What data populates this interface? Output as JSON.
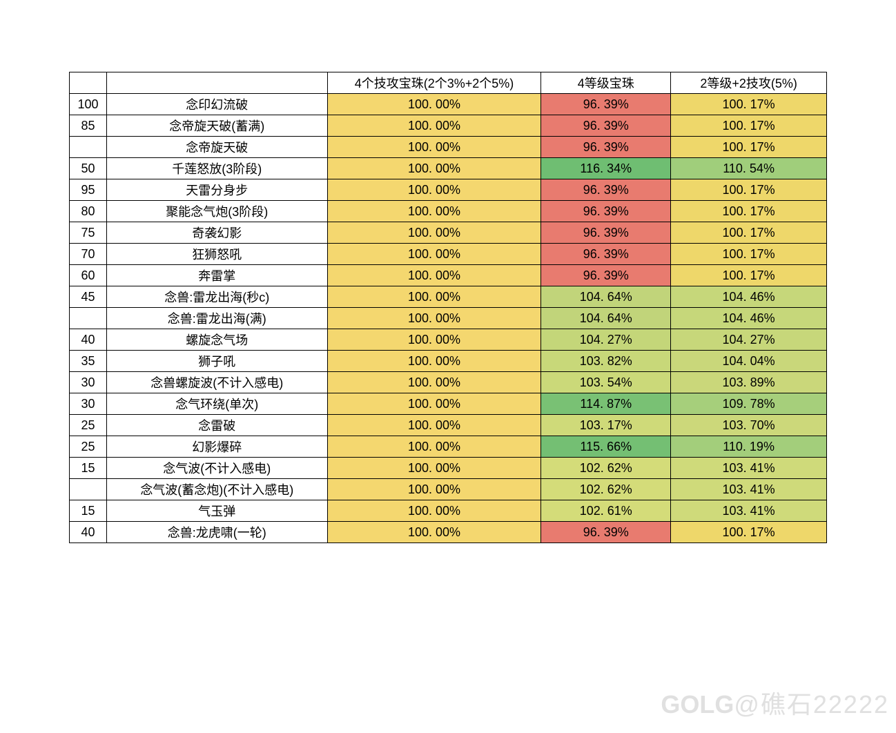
{
  "table": {
    "headers": {
      "col1": "",
      "col2": "",
      "col3": "4个技攻宝珠(2个3%+2个5%)",
      "col4": "4等级宝珠",
      "col5": "2等级+2技攻(5%)"
    },
    "rows": [
      {
        "id": "100",
        "name": "念印幻流破",
        "v1": "100. 00%",
        "v2": "96. 39%",
        "v3": "100. 17%",
        "c1": "#f4d76f",
        "c2": "#e87b6f",
        "c3": "#eed76a"
      },
      {
        "id": "85",
        "name": "念帝旋天破(蓄满)",
        "v1": "100. 00%",
        "v2": "96. 39%",
        "v3": "100. 17%",
        "c1": "#f4d76f",
        "c2": "#e87b6f",
        "c3": "#eed76a"
      },
      {
        "id": "",
        "name": "念帝旋天破",
        "v1": "100. 00%",
        "v2": "96. 39%",
        "v3": "100. 17%",
        "c1": "#f4d76f",
        "c2": "#e87b6f",
        "c3": "#eed76a"
      },
      {
        "id": "50",
        "name": "千莲怒放(3阶段)",
        "v1": "100. 00%",
        "v2": "116. 34%",
        "v3": "110. 54%",
        "c1": "#f4d76f",
        "c2": "#6fbe72",
        "c3": "#a0ce7b"
      },
      {
        "id": "95",
        "name": "天雷分身步",
        "v1": "100. 00%",
        "v2": "96. 39%",
        "v3": "100. 17%",
        "c1": "#f4d76f",
        "c2": "#e87b6f",
        "c3": "#eed76a"
      },
      {
        "id": "80",
        "name": "聚能念气炮(3阶段)",
        "v1": "100. 00%",
        "v2": "96. 39%",
        "v3": "100. 17%",
        "c1": "#f4d76f",
        "c2": "#e87b6f",
        "c3": "#eed76a"
      },
      {
        "id": "75",
        "name": "奇袭幻影",
        "v1": "100. 00%",
        "v2": "96. 39%",
        "v3": "100. 17%",
        "c1": "#f4d76f",
        "c2": "#e87b6f",
        "c3": "#eed76a"
      },
      {
        "id": "70",
        "name": "狂狮怒吼",
        "v1": "100. 00%",
        "v2": "96. 39%",
        "v3": "100. 17%",
        "c1": "#f4d76f",
        "c2": "#e87b6f",
        "c3": "#eed76a"
      },
      {
        "id": "60",
        "name": "奔雷掌",
        "v1": "100. 00%",
        "v2": "96. 39%",
        "v3": "100. 17%",
        "c1": "#f4d76f",
        "c2": "#e87b6f",
        "c3": "#eed76a"
      },
      {
        "id": "45",
        "name": "念兽:雷龙出海(秒c)",
        "v1": "100. 00%",
        "v2": "104. 64%",
        "v3": "104. 46%",
        "c1": "#f4d76f",
        "c2": "#c1d47a",
        "c3": "#c6d77a"
      },
      {
        "id": "",
        "name": "念兽:雷龙出海(满)",
        "v1": "100. 00%",
        "v2": "104. 64%",
        "v3": "104. 46%",
        "c1": "#f4d76f",
        "c2": "#c1d47a",
        "c3": "#c6d77a"
      },
      {
        "id": "40",
        "name": "螺旋念气场",
        "v1": "100. 00%",
        "v2": "104. 27%",
        "v3": "104. 27%",
        "c1": "#f4d76f",
        "c2": "#c4d679",
        "c3": "#c7d77a"
      },
      {
        "id": "35",
        "name": "狮子吼",
        "v1": "100. 00%",
        "v2": "103. 82%",
        "v3": "104. 04%",
        "c1": "#f4d76f",
        "c2": "#c8d879",
        "c3": "#c9d77a"
      },
      {
        "id": "30",
        "name": "念兽螺旋波(不计入感电)",
        "v1": "100. 00%",
        "v2": "103. 54%",
        "v3": "103. 89%",
        "c1": "#f4d76f",
        "c2": "#cbd979",
        "c3": "#cad77a"
      },
      {
        "id": "30",
        "name": "念气环绕(单次)",
        "v1": "100. 00%",
        "v2": "114. 87%",
        "v3": "109. 78%",
        "c1": "#f4d76f",
        "c2": "#79c174",
        "c3": "#a6cf7b"
      },
      {
        "id": "25",
        "name": "念雷破",
        "v1": "100. 00%",
        "v2": "103. 17%",
        "v3": "103. 70%",
        "c1": "#f4d76f",
        "c2": "#cfda79",
        "c3": "#ccd87a"
      },
      {
        "id": "25",
        "name": "幻影爆碎",
        "v1": "100. 00%",
        "v2": "115. 66%",
        "v3": "110. 19%",
        "c1": "#f4d76f",
        "c2": "#74bf73",
        "c3": "#a3ce7b"
      },
      {
        "id": "15",
        "name": "念气波(不计入感电)",
        "v1": "100. 00%",
        "v2": "102. 62%",
        "v3": "103. 41%",
        "c1": "#f4d76f",
        "c2": "#d4dc79",
        "c3": "#cfda7a"
      },
      {
        "id": "",
        "name": "念气波(蓄念炮)(不计入感电)",
        "v1": "100. 00%",
        "v2": "102. 62%",
        "v3": "103. 41%",
        "c1": "#f4d76f",
        "c2": "#d4dc79",
        "c3": "#cfda7a"
      },
      {
        "id": "15",
        "name": "气玉弹",
        "v1": "100. 00%",
        "v2": "102. 61%",
        "v3": "103. 41%",
        "c1": "#f4d76f",
        "c2": "#d4dc79",
        "c3": "#cfda7a"
      },
      {
        "id": "40",
        "name": "念兽:龙虎啸(一轮)",
        "v1": "100. 00%",
        "v2": "96. 39%",
        "v3": "100. 17%",
        "c1": "#f4d76f",
        "c2": "#e87b6f",
        "c3": "#eed76a"
      }
    ]
  },
  "watermark": {
    "logo": "GOLG",
    "text": "@礁石22222"
  }
}
